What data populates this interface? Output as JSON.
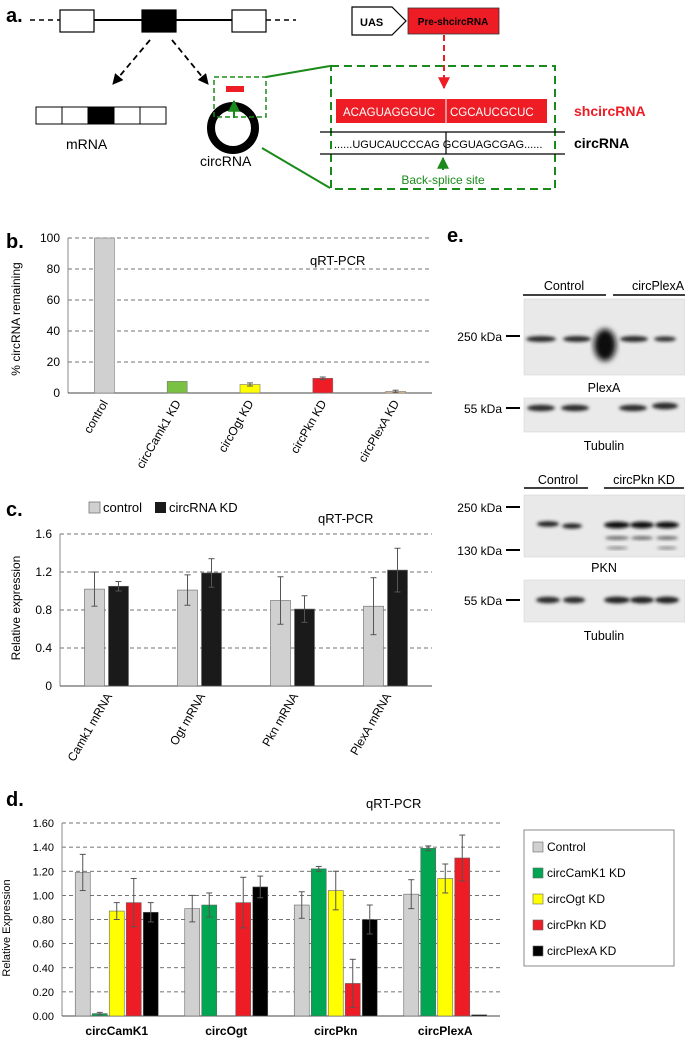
{
  "panel_a": {
    "label": "a.",
    "uas": "UAS",
    "pre": "Pre-shcircRNA",
    "mrna": "mRNA",
    "circrna": "circRNA",
    "sh_seq_1": "ACAGUAGGGUC",
    "sh_seq_2": "CGCAUCGCUC",
    "sh_label": "shcircRNA",
    "circ_seq": "......UGUCAUCCCAG GCGUAGCGAG......",
    "circ_label": "circRNA",
    "bss": "Back-splice site"
  },
  "colors": {
    "control": "#d0d0d0",
    "camk1": "#00a651",
    "camk1_b": "#7ac143",
    "ogt": "#ffff00",
    "pkn": "#ee1c25",
    "plexa": "#000000",
    "plexa_b": "#f5c38a",
    "green_line": "#1a8a1a",
    "red": "#ee1c25"
  },
  "chart_data": [
    {
      "panel": "b.",
      "type": "bar",
      "title": "qRT-PCR",
      "ylabel": "% circRNA remaining",
      "categories": [
        "control",
        "circCamk1 KD",
        "circOgt KD",
        "circPkn KD",
        "circPlexA KD"
      ],
      "values": [
        100,
        7.5,
        5.5,
        9.5,
        1
      ],
      "errors": [
        0,
        0,
        1,
        0.8,
        0.8
      ],
      "yticks": [
        0,
        20,
        40,
        60,
        80,
        100
      ],
      "ylim": [
        0,
        100
      ]
    },
    {
      "panel": "c.",
      "type": "bar",
      "title": "qRT-PCR",
      "ylabel": "Relative expression",
      "categories": [
        "Camk1 mRNA",
        "Ogt mRNA",
        "Pkn mRNA",
        "PlexA mRNA"
      ],
      "series": [
        {
          "name": "control",
          "values": [
            1.02,
            1.01,
            0.9,
            0.84
          ],
          "errors": [
            0.18,
            0.16,
            0.25,
            0.3
          ]
        },
        {
          "name": "circRNA KD",
          "values": [
            1.05,
            1.19,
            0.81,
            1.22
          ],
          "errors": [
            0.05,
            0.15,
            0.14,
            0.23
          ]
        }
      ],
      "yticks": [
        "0",
        "0.4",
        "0.8",
        "1.2",
        "1.6"
      ],
      "ylim": [
        0,
        1.6
      ]
    },
    {
      "panel": "d.",
      "type": "bar",
      "title": "qRT-PCR",
      "ylabel": "Relative Expression",
      "categories": [
        "circCamK1",
        "circOgt",
        "circPkn",
        "circPlexA"
      ],
      "series": [
        {
          "name": "Control",
          "values": [
            1.19,
            0.89,
            0.92,
            1.01
          ],
          "errors": [
            0.15,
            0.11,
            0.11,
            0.12
          ]
        },
        {
          "name": "circCamK1 KD",
          "values": [
            0.02,
            0.92,
            1.22,
            1.39
          ],
          "errors": [
            0.01,
            0.1,
            0.02,
            0.02
          ]
        },
        {
          "name": "circOgt KD",
          "values": [
            0.87,
            0.0,
            1.04,
            1.14
          ],
          "errors": [
            0.07,
            0.0,
            0.16,
            0.12
          ]
        },
        {
          "name": "circPkn KD",
          "values": [
            0.94,
            0.94,
            0.27,
            1.31
          ],
          "errors": [
            0.2,
            0.21,
            0.2,
            0.19
          ]
        },
        {
          "name": "circPlexA KD",
          "values": [
            0.86,
            1.07,
            0.8,
            0.01
          ],
          "errors": [
            0.08,
            0.09,
            0.12,
            0.0
          ]
        }
      ],
      "yticks": [
        "0.00",
        "0.20",
        "0.40",
        "0.60",
        "0.80",
        "1.00",
        "1.20",
        "1.40",
        "1.60"
      ],
      "ylim": [
        0,
        1.6
      ]
    }
  ],
  "panel_e": {
    "label": "e.",
    "blot1_groups": [
      "Control",
      "circPlexA KD"
    ],
    "blot1_markers": [
      "250 kDa",
      "55 kDa"
    ],
    "blot1_captions": [
      "PlexA",
      "Tubulin"
    ],
    "blot2_groups": [
      "Control",
      "circPkn KD"
    ],
    "blot2_markers": [
      "250 kDa",
      "130 kDa",
      "55 kDa"
    ],
    "blot2_captions": [
      "PKN",
      "Tubulin"
    ]
  }
}
